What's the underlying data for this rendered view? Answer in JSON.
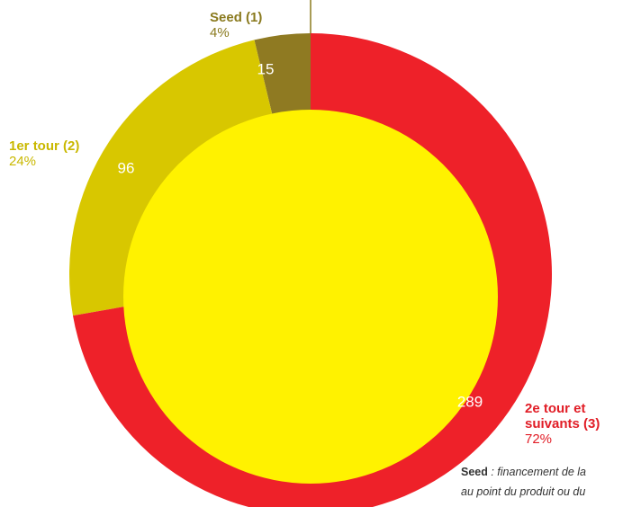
{
  "chart_data": {
    "type": "pie",
    "categories": [
      "Seed (1)",
      "1er tour (2)",
      "2e tour et suivants (3)"
    ],
    "values": [
      15,
      96,
      289
    ],
    "percent_labels": [
      "4%",
      "24%",
      "72%"
    ],
    "colors": [
      "#8f7a22",
      "#d8c700",
      "#ee2129"
    ],
    "label_colors": [
      "#8a7a1e",
      "#c9b800",
      "#e11d26"
    ],
    "center_color": "#fff200",
    "footnote": {
      "term": "Seed",
      "lines": [
        " : financement de la",
        "au point du produit ou du"
      ]
    }
  }
}
